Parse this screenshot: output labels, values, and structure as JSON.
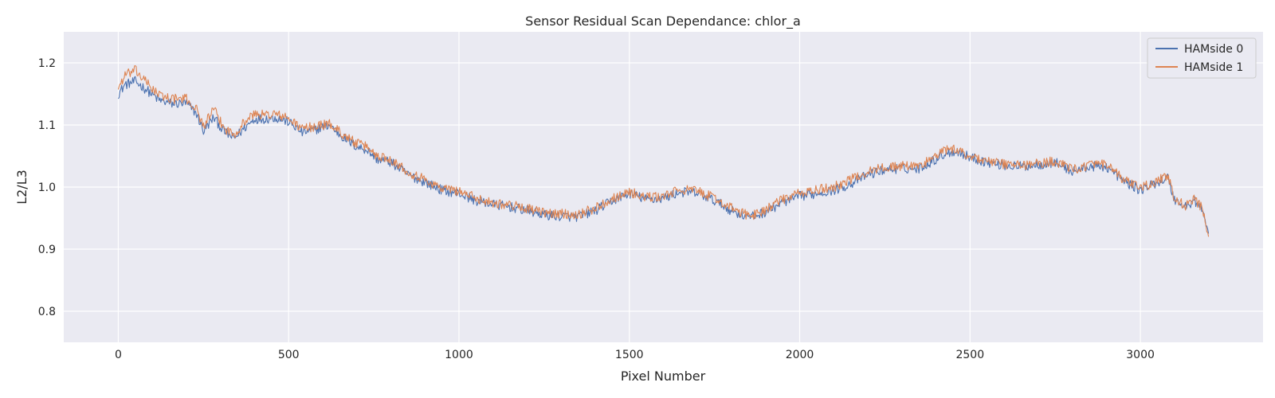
{
  "chart_data": {
    "type": "line",
    "title": "Sensor Residual Scan Dependance: chlor_a",
    "xlabel": "Pixel Number",
    "ylabel": "L2/L3",
    "xlim": [
      -160,
      3360
    ],
    "ylim": [
      0.75,
      1.25
    ],
    "x_ticks": [
      0,
      500,
      1000,
      1500,
      2000,
      2500,
      3000
    ],
    "y_ticks": [
      0.8,
      0.9,
      1.0,
      1.1,
      1.2
    ],
    "x_tick_labels": [
      "0",
      "500",
      "1000",
      "1500",
      "2000",
      "2500",
      "3000"
    ],
    "y_tick_labels": [
      "0.8",
      "0.9",
      "1.0",
      "1.1",
      "1.2"
    ],
    "grid": true,
    "legend_position": "top-right",
    "series": [
      {
        "name": "HAMside 0",
        "color": "#4c72b0",
        "x": [
          0,
          20,
          50,
          80,
          120,
          160,
          200,
          230,
          250,
          280,
          310,
          340,
          370,
          400,
          430,
          460,
          500,
          540,
          580,
          620,
          660,
          700,
          730,
          760,
          800,
          850,
          900,
          950,
          1000,
          1050,
          1100,
          1150,
          1200,
          1250,
          1300,
          1350,
          1400,
          1450,
          1500,
          1550,
          1600,
          1650,
          1700,
          1750,
          1800,
          1830,
          1860,
          1900,
          1950,
          2000,
          2050,
          2100,
          2150,
          2200,
          2250,
          2300,
          2350,
          2400,
          2430,
          2460,
          2500,
          2550,
          2600,
          2650,
          2700,
          2750,
          2800,
          2850,
          2900,
          2950,
          3000,
          3050,
          3080,
          3100,
          3130,
          3160,
          3180,
          3200
        ],
        "y": [
          1.15,
          1.165,
          1.17,
          1.158,
          1.14,
          1.134,
          1.135,
          1.118,
          1.09,
          1.112,
          1.09,
          1.078,
          1.095,
          1.11,
          1.11,
          1.112,
          1.105,
          1.088,
          1.093,
          1.1,
          1.08,
          1.065,
          1.06,
          1.045,
          1.04,
          1.02,
          1.008,
          0.995,
          0.99,
          0.978,
          0.972,
          0.968,
          0.962,
          0.955,
          0.953,
          0.952,
          0.962,
          0.978,
          0.99,
          0.98,
          0.982,
          0.992,
          0.99,
          0.978,
          0.962,
          0.955,
          0.952,
          0.96,
          0.975,
          0.985,
          0.99,
          0.995,
          1.005,
          1.02,
          1.028,
          1.03,
          1.03,
          1.045,
          1.055,
          1.058,
          1.048,
          1.04,
          1.035,
          1.033,
          1.036,
          1.04,
          1.025,
          1.033,
          1.033,
          1.01,
          0.995,
          1.008,
          1.015,
          0.98,
          0.968,
          0.978,
          0.965,
          0.925
        ]
      },
      {
        "name": "HAMside 1",
        "color": "#dd8452",
        "x": [
          0,
          20,
          50,
          80,
          120,
          160,
          200,
          230,
          250,
          280,
          310,
          340,
          370,
          400,
          430,
          460,
          500,
          540,
          580,
          620,
          660,
          700,
          730,
          760,
          800,
          850,
          900,
          950,
          1000,
          1050,
          1100,
          1150,
          1200,
          1250,
          1300,
          1350,
          1400,
          1450,
          1500,
          1550,
          1600,
          1650,
          1700,
          1750,
          1800,
          1830,
          1860,
          1900,
          1950,
          2000,
          2050,
          2100,
          2150,
          2200,
          2250,
          2300,
          2350,
          2400,
          2430,
          2460,
          2500,
          2550,
          2600,
          2650,
          2700,
          2750,
          2800,
          2850,
          2900,
          2950,
          3000,
          3050,
          3080,
          3100,
          3130,
          3160,
          3180,
          3200
        ],
        "y": [
          1.16,
          1.18,
          1.188,
          1.17,
          1.148,
          1.142,
          1.142,
          1.125,
          1.098,
          1.125,
          1.095,
          1.085,
          1.105,
          1.118,
          1.116,
          1.118,
          1.11,
          1.094,
          1.098,
          1.102,
          1.085,
          1.07,
          1.065,
          1.05,
          1.045,
          1.025,
          1.012,
          0.998,
          0.994,
          0.982,
          0.975,
          0.971,
          0.966,
          0.958,
          0.957,
          0.956,
          0.966,
          0.982,
          0.992,
          0.983,
          0.985,
          0.996,
          0.994,
          0.982,
          0.966,
          0.958,
          0.954,
          0.964,
          0.98,
          0.99,
          0.995,
          1.0,
          1.012,
          1.025,
          1.032,
          1.034,
          1.034,
          1.05,
          1.06,
          1.06,
          1.05,
          1.042,
          1.037,
          1.035,
          1.038,
          1.042,
          1.028,
          1.036,
          1.036,
          1.012,
          0.998,
          1.01,
          1.018,
          0.982,
          0.97,
          0.98,
          0.967,
          0.92
        ]
      }
    ]
  }
}
